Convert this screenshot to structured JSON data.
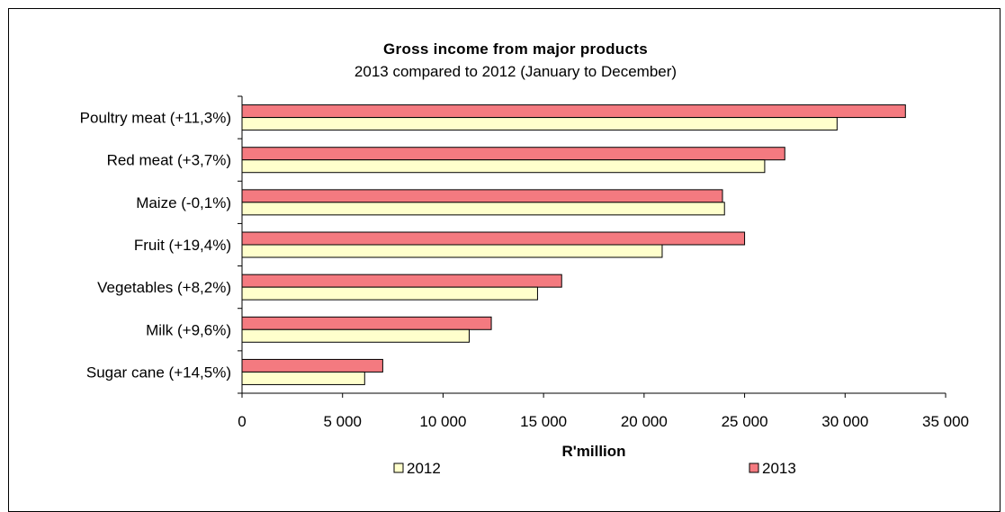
{
  "chart_data": {
    "type": "bar",
    "orientation": "horizontal",
    "title": "Gross income from major products",
    "subtitle": "2013 compared to 2012 (January to December)",
    "xlabel": "R'million",
    "ylabel": "",
    "xlim": [
      0,
      35000
    ],
    "xticks": [
      0,
      5000,
      10000,
      15000,
      20000,
      25000,
      30000,
      35000
    ],
    "xtick_labels": [
      "0",
      "5 000",
      "10 000",
      "15 000",
      "20 000",
      "25 000",
      "30 000",
      "35 000"
    ],
    "categories": [
      "Poultry meat (+11,3%)",
      "Red meat (+3,7%)",
      "Maize (-0,1%)",
      "Fruit (+19,4%)",
      "Vegetables (+8,2%)",
      "Milk (+9,6%)",
      "Sugar cane (+14,5%)"
    ],
    "series": [
      {
        "name": "2012",
        "color": "#ffffcc",
        "values": [
          29600,
          26000,
          24000,
          20900,
          14700,
          11300,
          6100
        ]
      },
      {
        "name": "2013",
        "color": "#f47a80",
        "values": [
          33000,
          27000,
          23900,
          25000,
          15900,
          12400,
          7000
        ]
      }
    ],
    "grid": false,
    "legend": "bottom"
  }
}
